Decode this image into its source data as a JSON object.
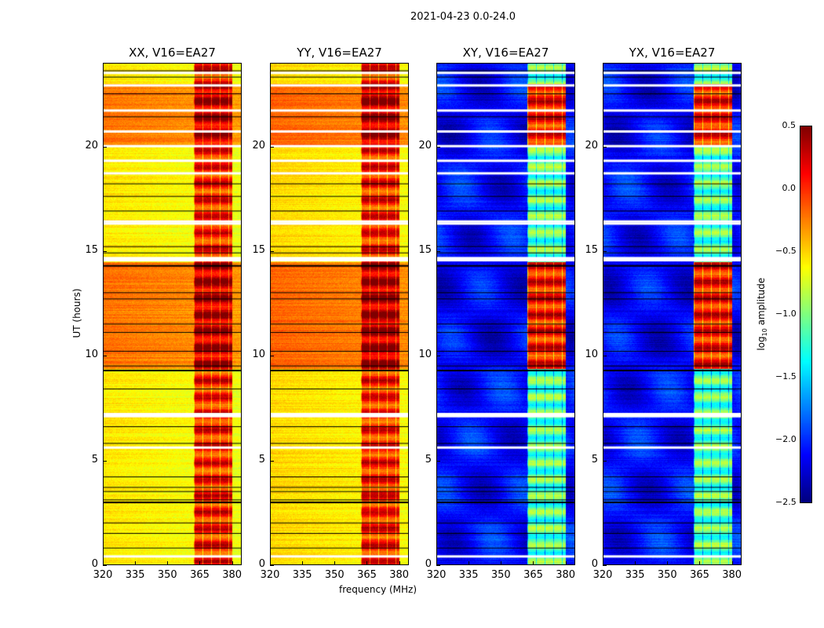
{
  "chart_data": {
    "type": "heatmap",
    "title": "2021-04-23 0.0-24.0",
    "xlabel": "frequency (MHz)",
    "ylabel": "UT (hours)",
    "xlim": [
      320,
      384.5
    ],
    "ylim": [
      0,
      24
    ],
    "xticks": [
      "320",
      "335",
      "350",
      "365",
      "380"
    ],
    "yticks": [
      "0",
      "5",
      "10",
      "15",
      "20"
    ],
    "panels": [
      {
        "title": "XX, V16=EA27",
        "base": -0.6,
        "active_base": -0.25,
        "band": 0.05,
        "band_active": 0.3
      },
      {
        "title": "YY, V16=EA27",
        "base": -0.55,
        "active_base": -0.2,
        "band": 0.05,
        "band_active": 0.35
      },
      {
        "title": "XY, V16=EA27",
        "base": -2.1,
        "active_base": -2.15,
        "band": -1.1,
        "band_active": 0.1
      },
      {
        "title": "YX, V16=EA27",
        "base": -2.1,
        "active_base": -2.15,
        "band": -1.1,
        "band_active": 0.1
      }
    ],
    "rfi_band_mhz": [
      362,
      380
    ],
    "flagged_white_ut": [
      0.4,
      5.6,
      7.1,
      7.2,
      14.55,
      14.65,
      16.3,
      16.4,
      18.7,
      19.3,
      20.0,
      20.7,
      21.7,
      22.9,
      23.5
    ],
    "flagged_black_ut": [
      0.8,
      1.5,
      2.0,
      3.0,
      3.1,
      3.5,
      3.7,
      4.2,
      5.8,
      6.6,
      8.4,
      9.3,
      9.5,
      10.2,
      11.1,
      11.5,
      12.7,
      13.0,
      14.3,
      14.9,
      15.2,
      16.9,
      17.6,
      18.2,
      21.4,
      22.5,
      23.3,
      23.6
    ],
    "colorbar": {
      "label": "log10 amplitude",
      "min": -2.5,
      "max": 0.5,
      "ticks": [
        "0.5",
        "0.0",
        "−0.5",
        "−1.0",
        "−1.5",
        "−2.0",
        "−2.5"
      ]
    }
  }
}
